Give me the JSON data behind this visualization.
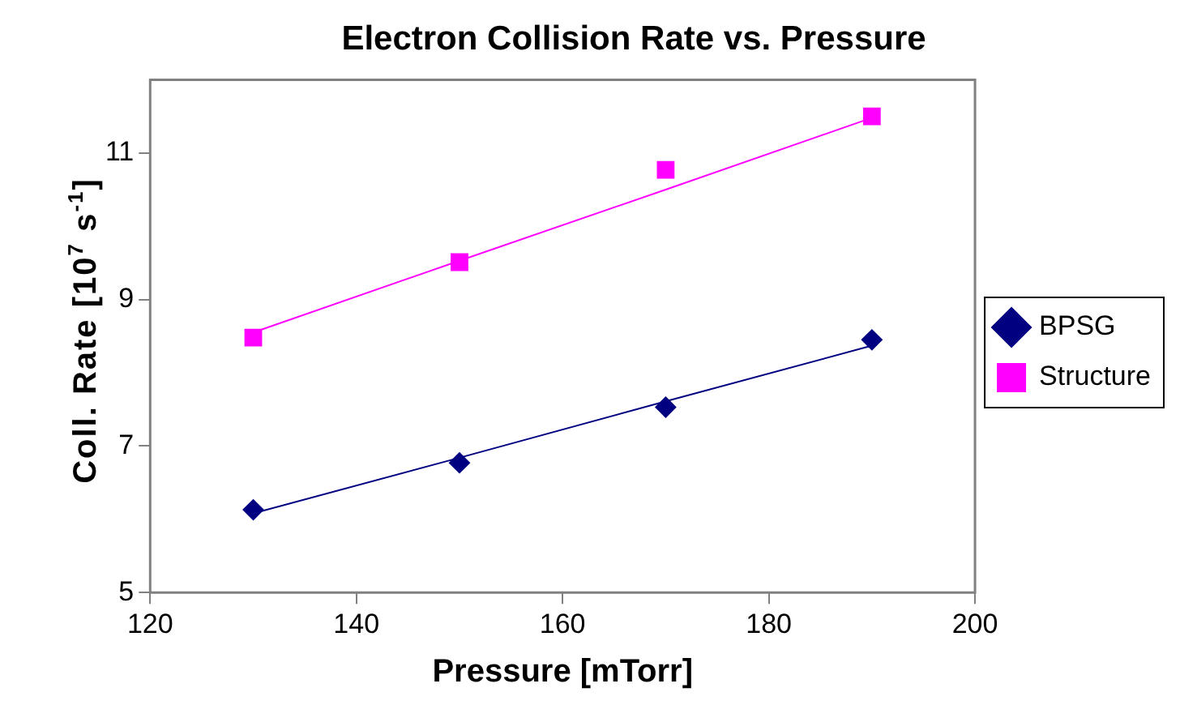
{
  "chart_data": {
    "type": "scatter",
    "title": "Electron Collision Rate vs. Pressure",
    "xlabel": "Pressure [mTorr]",
    "ylabel": "Coll. Rate [10$^{7}$ s$^{-1}$]",
    "x": [
      130,
      150,
      170,
      190
    ],
    "series": [
      {
        "name": "BPSG",
        "color": "#000080",
        "marker": "diamond",
        "values": [
          6.13,
          6.77,
          7.53,
          8.45
        ]
      },
      {
        "name": "Structure",
        "color": "#ff00ff",
        "marker": "square",
        "values": [
          8.48,
          9.51,
          10.77,
          11.5
        ]
      },
      {
        "type": "line",
        "color": "#000080",
        "marker": "none",
        "values": [
          6.08,
          6.84,
          7.61,
          8.37
        ]
      },
      {
        "type": "line",
        "color": "#ff00ff",
        "marker": "none",
        "values": [
          8.55,
          9.53,
          10.5,
          11.48
        ]
      }
    ],
    "xlim": [
      120,
      200
    ],
    "xticks": [
      120,
      140,
      160,
      180,
      200
    ],
    "ylim": [
      5,
      12
    ],
    "yticks": [
      5,
      7,
      9,
      11
    ],
    "grid": false,
    "legend": "right"
  }
}
